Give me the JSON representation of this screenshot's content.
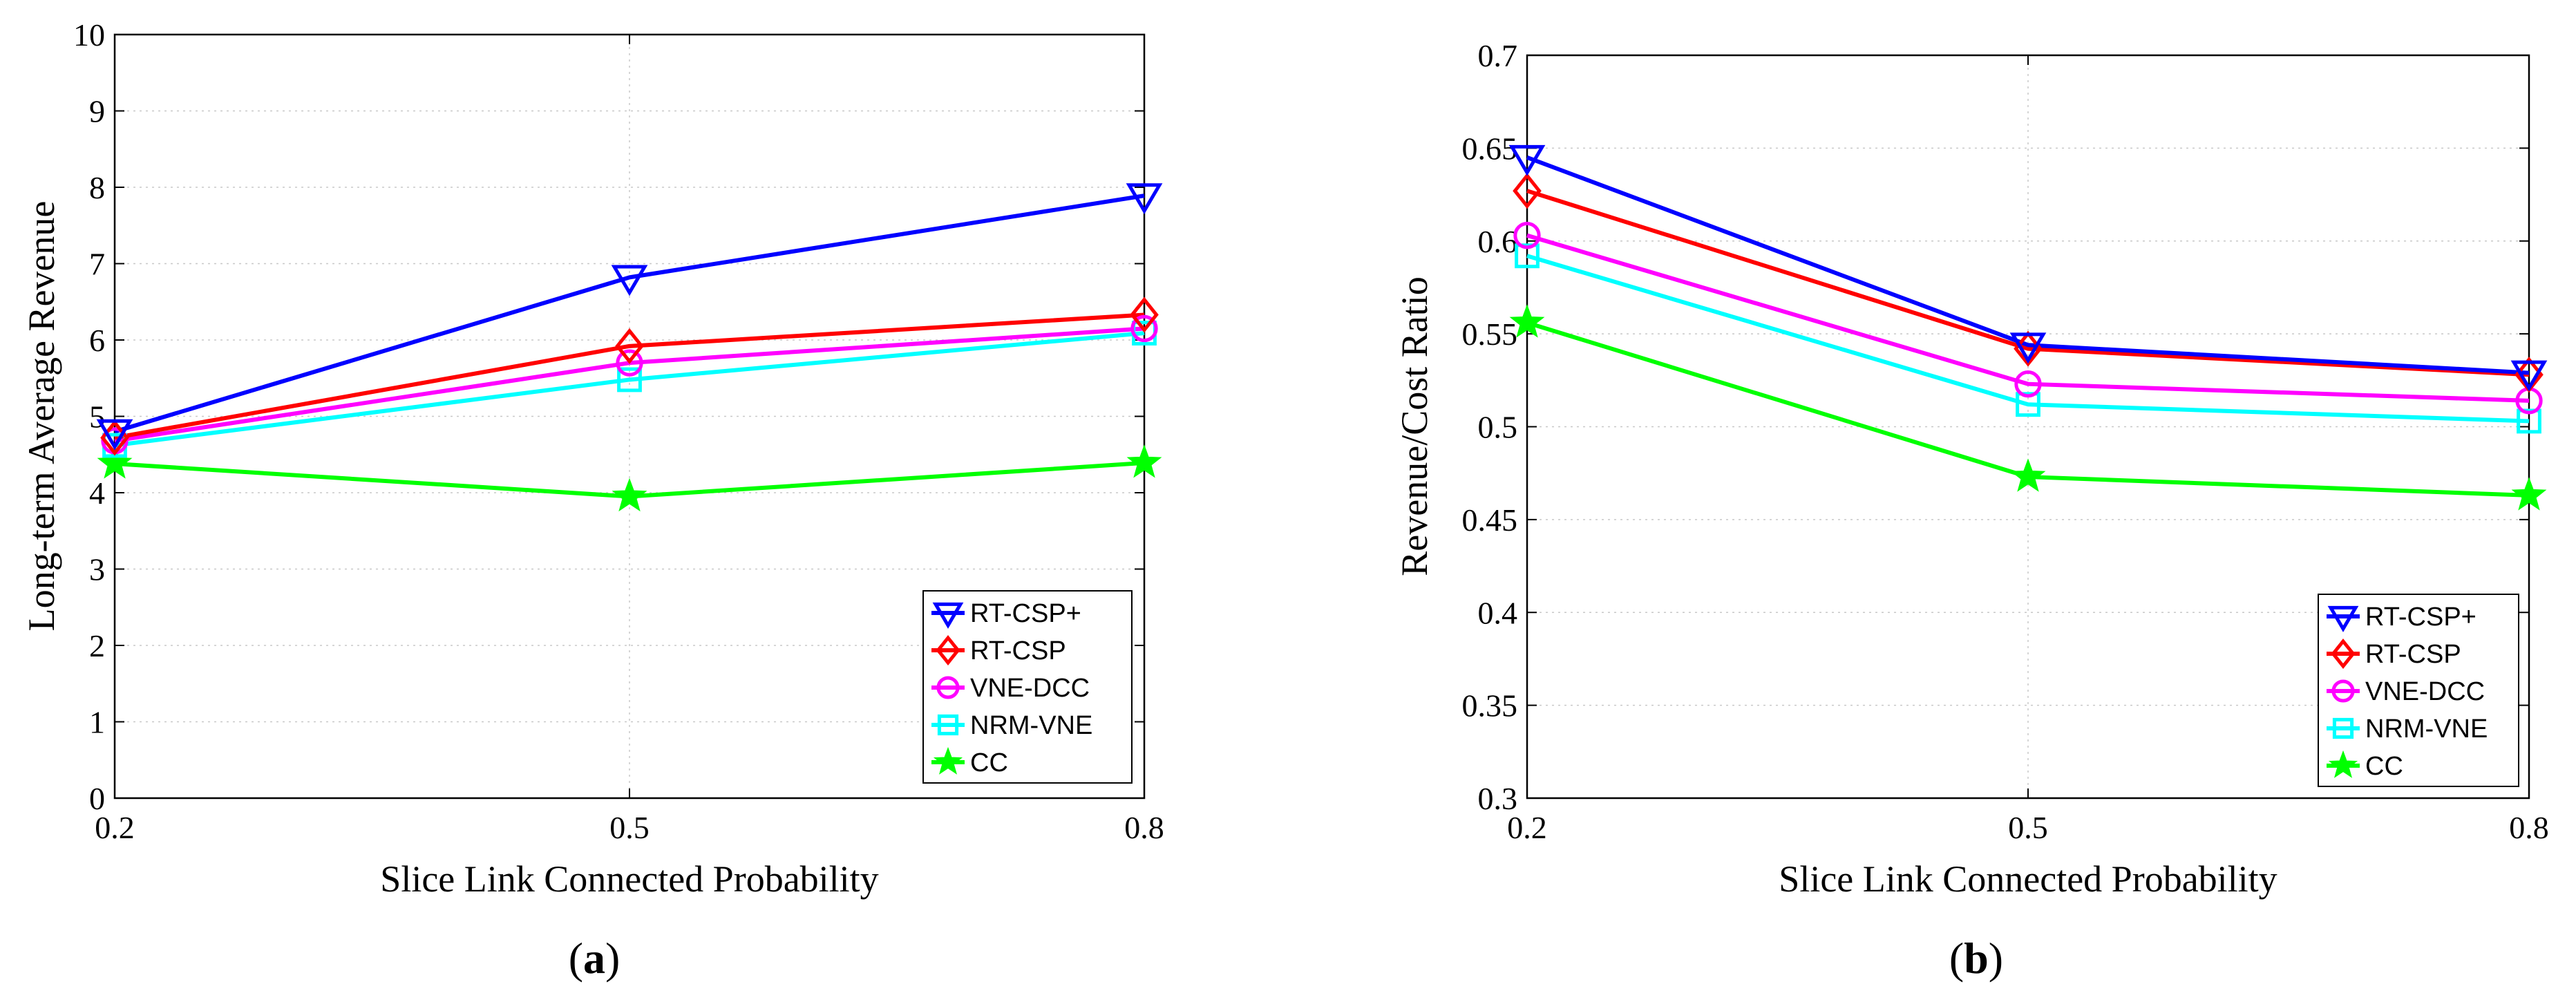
{
  "chart_data": [
    {
      "type": "line",
      "panel_label": "a",
      "xlabel": "Slice Link Connected Probability",
      "ylabel": "Long-term Average Revenue",
      "x": [
        0.2,
        0.5,
        0.8
      ],
      "x_tick_labels": [
        "0.2",
        "0.5",
        "0.8"
      ],
      "ylim": [
        0,
        10
      ],
      "y_ticks": [
        0,
        1,
        2,
        3,
        4,
        5,
        6,
        7,
        8,
        9,
        10
      ],
      "y_tick_labels": [
        "0",
        "1",
        "2",
        "3",
        "4",
        "5",
        "6",
        "7",
        "8",
        "9",
        "10"
      ],
      "grid": true,
      "legend_position": "bottom-right",
      "series": [
        {
          "name": "RT-CSP+",
          "color": "#0000ff",
          "marker": "triangle-down",
          "values": [
            4.8,
            6.82,
            7.89
          ]
        },
        {
          "name": "RT-CSP",
          "color": "#ff0000",
          "marker": "diamond",
          "values": [
            4.72,
            5.92,
            6.33
          ]
        },
        {
          "name": "VNE-DCC",
          "color": "#ff00ff",
          "marker": "circle",
          "values": [
            4.68,
            5.7,
            6.15
          ]
        },
        {
          "name": "NRM-VNE",
          "color": "#00ffff",
          "marker": "square",
          "values": [
            4.62,
            5.48,
            6.09
          ]
        },
        {
          "name": "CC",
          "color": "#00ff00",
          "marker": "star",
          "values": [
            4.38,
            3.95,
            4.39
          ]
        }
      ]
    },
    {
      "type": "line",
      "panel_label": "b",
      "xlabel": "Slice Link Connected Probability",
      "ylabel": "Revenue/Cost Ratio",
      "x": [
        0.2,
        0.5,
        0.8
      ],
      "x_tick_labels": [
        "0.2",
        "0.5",
        "0.8"
      ],
      "ylim": [
        0.3,
        0.7
      ],
      "y_ticks": [
        0.3,
        0.35,
        0.4,
        0.45,
        0.5,
        0.55,
        0.6,
        0.65,
        0.7
      ],
      "y_tick_labels": [
        "0.3",
        "0.35",
        "0.4",
        "0.45",
        "0.5",
        "0.55",
        "0.6",
        "0.65",
        "0.7"
      ],
      "grid": true,
      "legend_position": "bottom-right",
      "series": [
        {
          "name": "RT-CSP+",
          "color": "#0000ff",
          "marker": "triangle-down",
          "values": [
            0.645,
            0.544,
            0.529
          ]
        },
        {
          "name": "RT-CSP",
          "color": "#ff0000",
          "marker": "diamond",
          "values": [
            0.627,
            0.542,
            0.528
          ]
        },
        {
          "name": "VNE-DCC",
          "color": "#ff00ff",
          "marker": "circle",
          "values": [
            0.603,
            0.523,
            0.514
          ]
        },
        {
          "name": "NRM-VNE",
          "color": "#00ffff",
          "marker": "square",
          "values": [
            0.592,
            0.512,
            0.503
          ]
        },
        {
          "name": "CC",
          "color": "#00ff00",
          "marker": "star",
          "values": [
            0.556,
            0.473,
            0.463
          ]
        }
      ]
    }
  ]
}
